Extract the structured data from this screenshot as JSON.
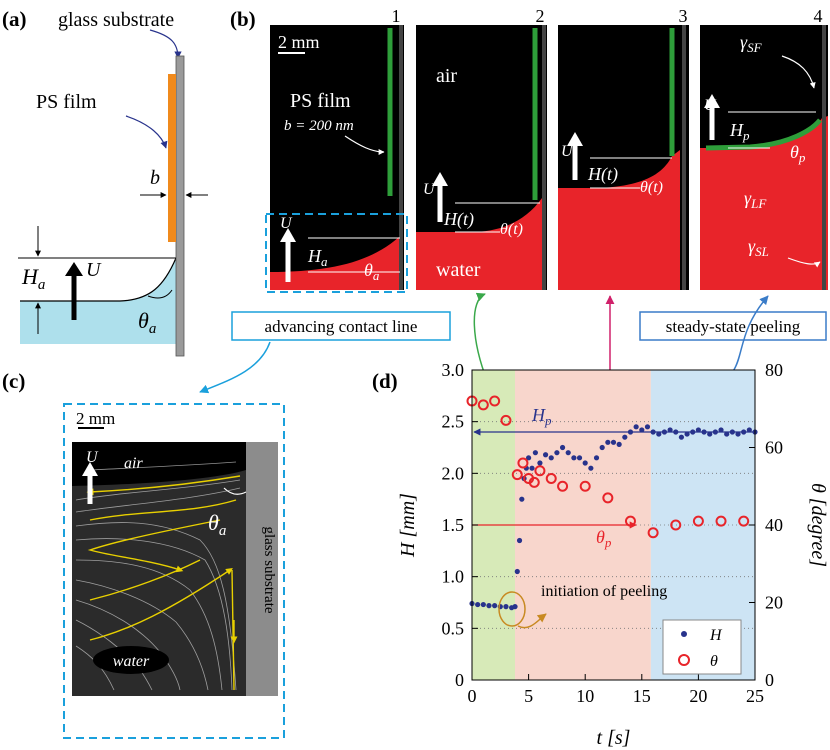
{
  "panel_a": {
    "label": "(a)",
    "glass_substrate": "glass substrate",
    "ps_film": "PS film",
    "b": "b",
    "Ha": "H",
    "Ha_sub": "a",
    "U": "U",
    "theta": "θ",
    "theta_sub": "a",
    "colors": {
      "film": "#f08a1c",
      "water": "#aee0ec",
      "substrate": "#9a9a9a"
    }
  },
  "panel_b": {
    "label": "(b)",
    "frame_numbers": [
      "1",
      "2",
      "3",
      "4"
    ],
    "scale": "2 mm",
    "ps_film": "PS film",
    "b_value": "b = 200 nm",
    "air": "air",
    "water": "water",
    "U": "U",
    "Ha": "H",
    "Ha_sub": "a",
    "theta_a": "θ",
    "theta_a_sub": "a",
    "Ht": "H(t)",
    "theta_t": "θ(t)",
    "Hp": "H",
    "Hp_sub": "p",
    "theta_p": "θ",
    "theta_p_sub": "p",
    "gamma": "γ",
    "gamma_SF": "SF",
    "gamma_LF": "LF",
    "gamma_SL": "SL",
    "advancing": "advancing contact line",
    "steady": "steady-state peeling",
    "colors": {
      "water": "#e8242a",
      "film": "#2e9e3a",
      "air": "#000000"
    }
  },
  "panel_c": {
    "label": "(c)",
    "scale": "2 mm",
    "U": "U",
    "air": "air",
    "water": "water",
    "theta": "θ",
    "theta_sub": "a",
    "glass_substrate": "glass substrate"
  },
  "chart_data": {
    "type": "scatter",
    "label": "(d)",
    "xlabel": "t [s]",
    "ylabel": "H [mm]",
    "ylabel2": "θ [degree]",
    "xlim": [
      0,
      25
    ],
    "ylim": [
      0,
      3.0
    ],
    "y2lim": [
      0,
      80
    ],
    "xticks": [
      "0",
      "5",
      "10",
      "15",
      "20",
      "25"
    ],
    "yticks": [
      "0",
      "0.5",
      "1.0",
      "1.5",
      "2.0",
      "2.5",
      "3.0"
    ],
    "y2ticks": [
      "0",
      "20",
      "40",
      "60",
      "80"
    ],
    "regions": [
      {
        "name": "advancing",
        "x0": 0,
        "x1": 3.8,
        "color": "#d7eab8"
      },
      {
        "name": "initiation",
        "x0": 3.8,
        "x1": 15.8,
        "color": "#f8d6cc"
      },
      {
        "name": "steady",
        "x0": 15.8,
        "x1": 25.5,
        "color": "#cde4f4"
      }
    ],
    "Hp_value": 2.4,
    "Hp_label": "H",
    "Hp_sub": "p",
    "thetap_value": 40,
    "thetap_label": "θ",
    "thetap_sub": "p",
    "annotation": "initiation of peeling",
    "legend": [
      {
        "name": "H",
        "marker": "dot",
        "color": "#28338c"
      },
      {
        "name": "θ",
        "marker": "circle",
        "color": "#e8242a"
      }
    ],
    "theta_series": {
      "t": [
        0,
        1,
        2,
        3,
        4,
        4.5,
        5,
        5.5,
        6,
        7,
        8,
        10,
        12,
        14,
        16,
        18,
        20,
        22,
        24
      ],
      "values": [
        72,
        71,
        72,
        67,
        53,
        56,
        52,
        51,
        54,
        52,
        50,
        50,
        47,
        41,
        38,
        40,
        41,
        41,
        41
      ]
    },
    "H_series": {
      "t": [
        0,
        0.5,
        1,
        1.5,
        2,
        2.5,
        3,
        3.5,
        3.8,
        4,
        4.2,
        4.4,
        4.6,
        4.8,
        5,
        5.3,
        5.6,
        6,
        6.5,
        7,
        7.5,
        8,
        8.5,
        9,
        9.5,
        10,
        10.5,
        11,
        11.5,
        12,
        12.5,
        13,
        13.5,
        14,
        14.5,
        15,
        15.5,
        16,
        16.5,
        17,
        17.5,
        18,
        18.5,
        19,
        19.5,
        20,
        20.5,
        21,
        21.5,
        22,
        22.5,
        23,
        23.5,
        24,
        24.5,
        25
      ],
      "values": [
        0.74,
        0.73,
        0.73,
        0.72,
        0.72,
        0.71,
        0.71,
        0.7,
        0.71,
        1.05,
        1.35,
        1.75,
        1.95,
        2.05,
        2.15,
        2.05,
        2.2,
        2.1,
        2.18,
        2.15,
        2.2,
        2.25,
        2.2,
        2.15,
        2.15,
        2.1,
        2.05,
        2.15,
        2.25,
        2.3,
        2.3,
        2.28,
        2.35,
        2.4,
        2.45,
        2.42,
        2.45,
        2.4,
        2.38,
        2.4,
        2.42,
        2.4,
        2.35,
        2.38,
        2.4,
        2.42,
        2.4,
        2.38,
        2.4,
        2.42,
        2.38,
        2.4,
        2.38,
        2.4,
        2.42,
        2.4
      ]
    }
  }
}
